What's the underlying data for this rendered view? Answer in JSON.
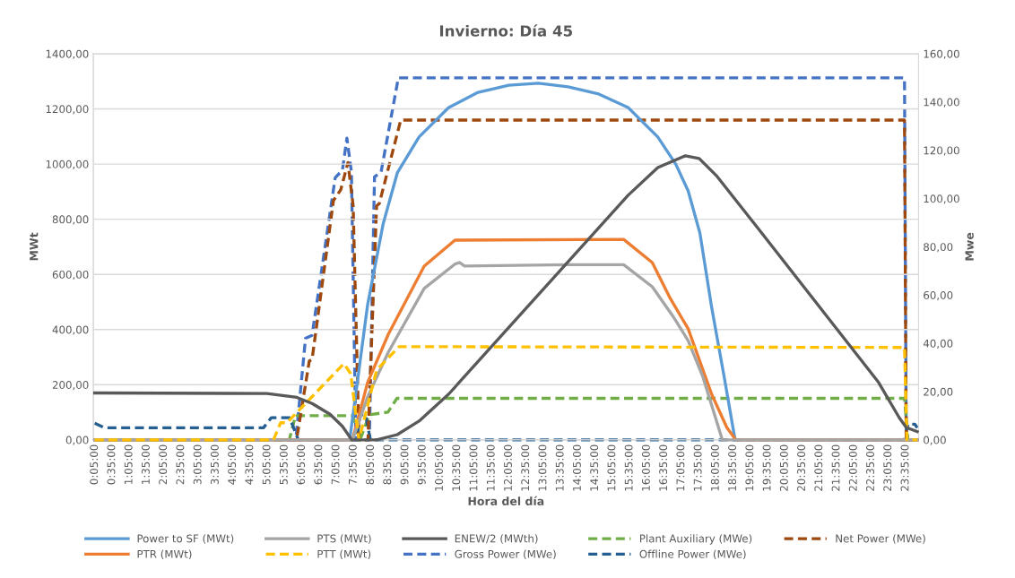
{
  "chart_data": {
    "type": "line",
    "title": "Invierno: Día 45",
    "xlabel": "Hora del día",
    "ylabel": "MWt",
    "y2label": "Mwe",
    "xlim": [
      0.0417,
      23.958
    ],
    "xticks": [
      {
        "value": 0.0833,
        "label": "0:05:00"
      },
      {
        "value": 0.5833,
        "label": "0:35:00"
      },
      {
        "value": 1.0833,
        "label": "1:05:00"
      },
      {
        "value": 1.5833,
        "label": "1:35:00"
      },
      {
        "value": 2.0833,
        "label": "2:05:00"
      },
      {
        "value": 2.5833,
        "label": "2:35:00"
      },
      {
        "value": 3.0833,
        "label": "3:05:00"
      },
      {
        "value": 3.5833,
        "label": "3:35:00"
      },
      {
        "value": 4.0833,
        "label": "4:05:00"
      },
      {
        "value": 4.5833,
        "label": "4:35:00"
      },
      {
        "value": 5.0833,
        "label": "5:05:00"
      },
      {
        "value": 5.5833,
        "label": "5:35:00"
      },
      {
        "value": 6.0833,
        "label": "6:05:00"
      },
      {
        "value": 6.5833,
        "label": "6:35:00"
      },
      {
        "value": 7.0833,
        "label": "7:05:00"
      },
      {
        "value": 7.5833,
        "label": "7:35:00"
      },
      {
        "value": 8.0833,
        "label": "8:05:00"
      },
      {
        "value": 8.5833,
        "label": "8:35:00"
      },
      {
        "value": 9.0833,
        "label": "9:05:00"
      },
      {
        "value": 9.5833,
        "label": "9:35:00"
      },
      {
        "value": 10.0833,
        "label": "10:05:00"
      },
      {
        "value": 10.5833,
        "label": "10:35:00"
      },
      {
        "value": 11.0833,
        "label": "11:05:00"
      },
      {
        "value": 11.5833,
        "label": "11:35:00"
      },
      {
        "value": 12.0833,
        "label": "12:05:00"
      },
      {
        "value": 12.5833,
        "label": "12:35:00"
      },
      {
        "value": 13.0833,
        "label": "13:05:00"
      },
      {
        "value": 13.5833,
        "label": "13:35:00"
      },
      {
        "value": 14.0833,
        "label": "14:05:00"
      },
      {
        "value": 14.5833,
        "label": "14:35:00"
      },
      {
        "value": 15.0833,
        "label": "15:05:00"
      },
      {
        "value": 15.5833,
        "label": "15:35:00"
      },
      {
        "value": 16.0833,
        "label": "16:05:00"
      },
      {
        "value": 16.5833,
        "label": "16:35:00"
      },
      {
        "value": 17.0833,
        "label": "17:05:00"
      },
      {
        "value": 17.5833,
        "label": "17:35:00"
      },
      {
        "value": 18.0833,
        "label": "18:05:00"
      },
      {
        "value": 18.5833,
        "label": "18:35:00"
      },
      {
        "value": 19.0833,
        "label": "19:05:00"
      },
      {
        "value": 19.5833,
        "label": "19:35:00"
      },
      {
        "value": 20.0833,
        "label": "20:05:00"
      },
      {
        "value": 20.5833,
        "label": "20:35:00"
      },
      {
        "value": 21.0833,
        "label": "21:05:00"
      },
      {
        "value": 21.5833,
        "label": "21:35:00"
      },
      {
        "value": 22.0833,
        "label": "22:05:00"
      },
      {
        "value": 22.5833,
        "label": "22:35:00"
      },
      {
        "value": 23.0833,
        "label": "23:05:00"
      },
      {
        "value": 23.5833,
        "label": "23:35:00"
      }
    ],
    "ylim": [
      0,
      1400
    ],
    "yticks": [
      {
        "value": 0,
        "label": "0,00"
      },
      {
        "value": 200,
        "label": "200,00"
      },
      {
        "value": 400,
        "label": "400,00"
      },
      {
        "value": 600,
        "label": "600,00"
      },
      {
        "value": 800,
        "label": "800,00"
      },
      {
        "value": 1000,
        "label": "1000,00"
      },
      {
        "value": 1200,
        "label": "1200,00"
      },
      {
        "value": 1400,
        "label": "1400,00"
      }
    ],
    "y2lim": [
      0,
      160
    ],
    "y2ticks": [
      {
        "value": 0,
        "label": "0,00"
      },
      {
        "value": 20,
        "label": "20,00"
      },
      {
        "value": 40,
        "label": "40,00"
      },
      {
        "value": 60,
        "label": "60,00"
      },
      {
        "value": 80,
        "label": "80,00"
      },
      {
        "value": 100,
        "label": "100,00"
      },
      {
        "value": 120,
        "label": "120,00"
      },
      {
        "value": 140,
        "label": "140,00"
      },
      {
        "value": 160,
        "label": "160,00"
      }
    ],
    "grid": "y",
    "legend": "bottom",
    "marker": "none",
    "series": [
      {
        "name": "Power to SF (MWt)",
        "color": "#5b9bd5",
        "line_style": "solid",
        "x": [
          0.08,
          7.47,
          7.99,
          8.44,
          8.85,
          9.48,
          10.34,
          11.19,
          12.08,
          12.94,
          13.8,
          14.69,
          15.54,
          16.4,
          16.92,
          17.28,
          17.62,
          17.96,
          18.32,
          18.64,
          23.92
        ],
        "values": [
          0,
          0,
          490,
          783,
          968,
          1098,
          1205,
          1260,
          1286,
          1293,
          1280,
          1254,
          1205,
          1098,
          1000,
          903,
          750,
          481,
          231,
          0,
          0
        ]
      },
      {
        "name": "PTR (MWt)",
        "color": "#ed7d31",
        "line_style": "solid",
        "x": [
          0.08,
          7.55,
          7.99,
          8.59,
          9.63,
          10.52,
          15.41,
          16.24,
          16.76,
          17.28,
          17.96,
          18.4,
          18.66,
          23.92
        ],
        "values": [
          0,
          0,
          208,
          383,
          630,
          724,
          727,
          643,
          513,
          403,
          166,
          45,
          0,
          0
        ]
      },
      {
        "name": "PTS (MWt)",
        "color": "#a5a5a5",
        "line_style": "solid",
        "x": [
          0.08,
          7.55,
          7.99,
          8.59,
          9.63,
          10.52,
          10.65,
          10.8,
          13.8,
          15.41,
          16.24,
          16.84,
          17.28,
          17.7,
          18.27,
          23.92
        ],
        "values": [
          0,
          0,
          156,
          318,
          549,
          637,
          643,
          630,
          635,
          635,
          555,
          448,
          360,
          231,
          0,
          0
        ]
      },
      {
        "name": "PTT (MWt)",
        "color": "#ffc000",
        "line_style": "dashed",
        "x": [
          0.08,
          5.26,
          5.47,
          5.65,
          7.3,
          7.5,
          7.74,
          8.25,
          8.9,
          23.55,
          23.62,
          23.92
        ],
        "values": [
          0,
          0,
          62,
          62,
          276,
          240,
          0,
          253,
          338,
          335,
          0,
          0
        ]
      },
      {
        "name": "ENEW/2 (MWth)",
        "color": "#595959",
        "line_style": "solid",
        "x": [
          0.08,
          5.07,
          5.94,
          6.38,
          6.9,
          7.26,
          7.53,
          8.25,
          8.85,
          9.48,
          10.34,
          15.54,
          16.4,
          17.2,
          17.6,
          18.12,
          19.35,
          22.8,
          23.4,
          23.6,
          23.92
        ],
        "values": [
          170,
          168,
          154,
          132,
          93,
          49,
          0,
          0,
          19,
          68,
          166,
          887,
          987,
          1030,
          1020,
          955,
          760,
          208,
          80,
          45,
          30
        ]
      },
      {
        "name": "Gross Power (MWe)",
        "color": "#4472c4",
        "line_style": "dashed",
        "axis": "y2",
        "x": [
          0.08,
          5.91,
          6.19,
          6.38,
          7.05,
          7.26,
          7.39,
          7.52,
          7.65,
          8.04,
          8.19,
          8.38,
          8.88,
          23.55,
          23.6,
          23.92
        ],
        "values": [
          0,
          0,
          42.1,
          43.3,
          108.6,
          111.8,
          125,
          111,
          0,
          0,
          109,
          111,
          150,
          150,
          0,
          0
        ]
      },
      {
        "name": "Plant Auxiliary (MWe)",
        "color": "#70ad47",
        "line_style": "dashed",
        "axis": "y2",
        "x": [
          0.08,
          5.72,
          5.9,
          7.56,
          7.77,
          8.04,
          8.58,
          8.84,
          23.55,
          23.65,
          23.92
        ],
        "values": [
          0,
          0,
          10,
          10,
          0,
          10.4,
          11.5,
          17.2,
          17.2,
          0,
          0
        ]
      },
      {
        "name": "Offline Power (MWe)",
        "color": "#255e91",
        "line_style": "dashed",
        "axis": "y2",
        "x": [
          0.08,
          0.37,
          4.97,
          5.2,
          5.73,
          5.98,
          7.67,
          7.78,
          7.93,
          8.07,
          23.55,
          23.65,
          23.85,
          23.92
        ],
        "values": [
          6.9,
          5,
          5,
          9.2,
          9.2,
          0,
          0,
          10.4,
          10.4,
          0,
          0,
          6.5,
          6.5,
          5
        ]
      },
      {
        "name": "Net Power (MWe)",
        "color": "#9e480e",
        "line_style": "dashed",
        "axis": "y2",
        "x": [
          0.08,
          5.93,
          6.3,
          6.38,
          7.0,
          7.21,
          7.42,
          7.57,
          7.74,
          8.0,
          8.25,
          8.33,
          8.95,
          23.55,
          23.6,
          23.92
        ],
        "values": [
          0,
          0,
          32.7,
          33.3,
          99.2,
          103.6,
          114.9,
          97,
          0,
          0,
          96.9,
          98,
          132.5,
          132.5,
          0,
          0
        ]
      }
    ]
  }
}
